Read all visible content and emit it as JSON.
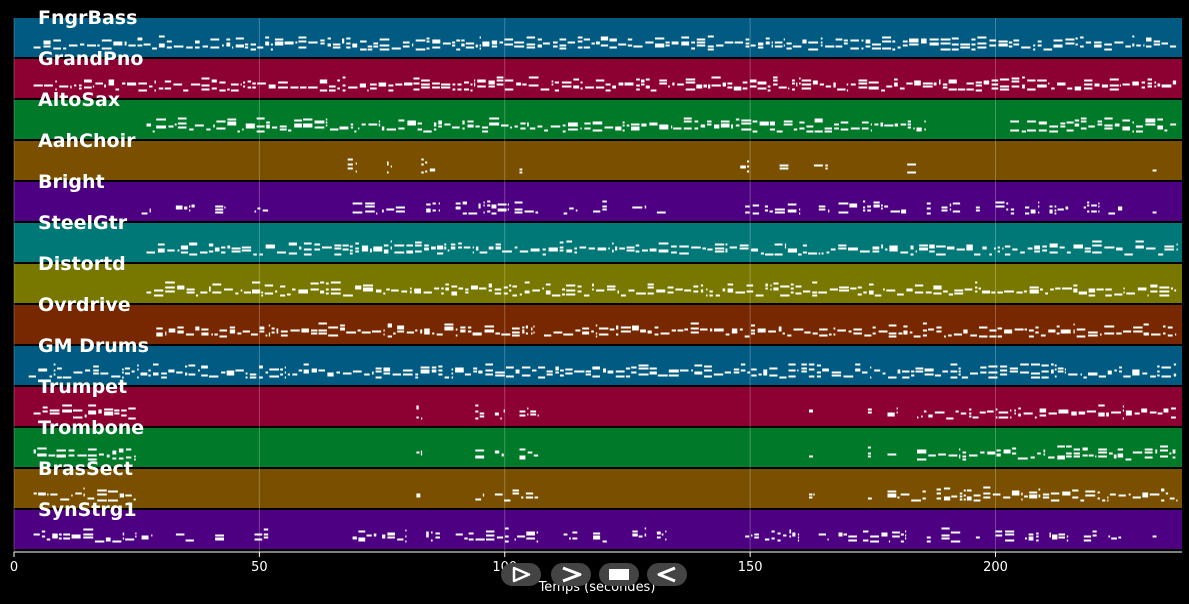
{
  "chart_data": {
    "type": "piano-roll",
    "xlabel": "Temps (secondes)",
    "xlim": [
      0,
      238
    ],
    "x_ticks": [
      0,
      50,
      100,
      150,
      200
    ],
    "tracks": [
      {
        "name": "FngrBass",
        "color": "#005a82",
        "segments": [
          [
            4,
            237
          ]
        ]
      },
      {
        "name": "GrandPno",
        "color": "#8c0032",
        "segments": [
          [
            4,
            237
          ]
        ]
      },
      {
        "name": "AltoSax",
        "color": "#007a28",
        "segments": [
          [
            27,
            186
          ],
          [
            203,
            237
          ]
        ]
      },
      {
        "name": "AahChoir",
        "color": "#7a5000",
        "segments": [
          [
            68,
            70
          ],
          [
            76,
            77
          ],
          [
            83,
            86
          ],
          [
            103,
            104
          ],
          [
            148,
            150
          ],
          [
            156,
            158
          ],
          [
            163,
            166
          ],
          [
            182,
            184
          ],
          [
            232,
            233
          ]
        ]
      },
      {
        "name": "Bright",
        "color": "#4e0082",
        "segments": [
          [
            26,
            28
          ],
          [
            33,
            37
          ],
          [
            41,
            43
          ],
          [
            49,
            52
          ],
          [
            69,
            74
          ],
          [
            75,
            80
          ],
          [
            84,
            87
          ],
          [
            90,
            101
          ],
          [
            102,
            107
          ],
          [
            112,
            115
          ],
          [
            118,
            121
          ],
          [
            126,
            129
          ],
          [
            131,
            133
          ],
          [
            149,
            152
          ],
          [
            153,
            160
          ],
          [
            164,
            166
          ],
          [
            168,
            172
          ],
          [
            173,
            182
          ],
          [
            186,
            187
          ],
          [
            189,
            193
          ],
          [
            196,
            197
          ],
          [
            200,
            204
          ],
          [
            206,
            209
          ],
          [
            211,
            215
          ],
          [
            218,
            221
          ],
          [
            223,
            226
          ],
          [
            232,
            233
          ]
        ]
      },
      {
        "name": "SteelGtr",
        "color": "#007878",
        "segments": [
          [
            27,
            237
          ]
        ]
      },
      {
        "name": "Distortd",
        "color": "#787800",
        "segments": [
          [
            27,
            237
          ]
        ]
      },
      {
        "name": "Ovrdrive",
        "color": "#782800",
        "segments": [
          [
            29,
            106
          ],
          [
            108,
            237
          ]
        ]
      },
      {
        "name": "GM Drums",
        "color": "#005a82",
        "segments": [
          [
            3,
            237
          ]
        ]
      },
      {
        "name": "Trumpet",
        "color": "#8c0032",
        "segments": [
          [
            4,
            25
          ],
          [
            82,
            83
          ],
          [
            94,
            96
          ],
          [
            98,
            100
          ],
          [
            103,
            107
          ],
          [
            162,
            163
          ],
          [
            174,
            175
          ],
          [
            178,
            180
          ],
          [
            184,
            237
          ]
        ]
      },
      {
        "name": "Trombone",
        "color": "#007a28",
        "segments": [
          [
            4,
            25
          ],
          [
            82,
            83
          ],
          [
            94,
            96
          ],
          [
            98,
            100
          ],
          [
            103,
            107
          ],
          [
            162,
            163
          ],
          [
            174,
            175
          ],
          [
            178,
            180
          ],
          [
            184,
            237
          ]
        ]
      },
      {
        "name": "BrasSect",
        "color": "#7a5000",
        "segments": [
          [
            4,
            25
          ],
          [
            82,
            83
          ],
          [
            94,
            96
          ],
          [
            98,
            107
          ],
          [
            162,
            163
          ],
          [
            174,
            175
          ],
          [
            178,
            186
          ],
          [
            188,
            237
          ]
        ]
      },
      {
        "name": "SynStrg1",
        "color": "#4e0082",
        "segments": [
          [
            4,
            25
          ],
          [
            26,
            28
          ],
          [
            33,
            37
          ],
          [
            41,
            43
          ],
          [
            49,
            52
          ],
          [
            69,
            74
          ],
          [
            75,
            80
          ],
          [
            84,
            87
          ],
          [
            90,
            101
          ],
          [
            102,
            107
          ],
          [
            112,
            115
          ],
          [
            118,
            121
          ],
          [
            126,
            129
          ],
          [
            131,
            133
          ],
          [
            149,
            152
          ],
          [
            153,
            160
          ],
          [
            164,
            166
          ],
          [
            168,
            172
          ],
          [
            173,
            182
          ],
          [
            186,
            187
          ],
          [
            189,
            193
          ],
          [
            196,
            197
          ],
          [
            200,
            204
          ],
          [
            206,
            209
          ],
          [
            211,
            215
          ],
          [
            218,
            221
          ],
          [
            223,
            226
          ],
          [
            232,
            233
          ]
        ]
      }
    ]
  },
  "playback_controls": [
    {
      "name": "play-button",
      "icon": "play-icon"
    },
    {
      "name": "next-button",
      "icon": "chevron-right-icon"
    },
    {
      "name": "stop-button",
      "icon": "stop-icon"
    },
    {
      "name": "previous-button",
      "icon": "chevron-left-icon"
    }
  ]
}
